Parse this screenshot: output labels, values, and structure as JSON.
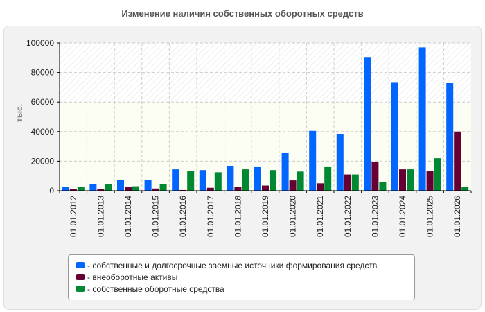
{
  "chart_data": {
    "type": "bar",
    "title": "Изменение наличия собственных оборотных средств",
    "ylabel": "тыс.",
    "xlabel": "",
    "ylim": [
      0,
      100000
    ],
    "yticks": [
      "0",
      "20000",
      "40000",
      "60000",
      "80000",
      "100000"
    ],
    "grid": true,
    "legend_position": "bottom",
    "categories": [
      "01.01.2012",
      "01.01.2013",
      "01.01.2014",
      "01.01.2015",
      "01.01.2016",
      "01.01.2017",
      "01.01.2018",
      "01.01.2019",
      "01.01.2020",
      "01.01.2021",
      "01.01.2022",
      "01.01.2023",
      "01.01.2024",
      "01.01.2025",
      "01.01.2026"
    ],
    "series": [
      {
        "name": "- собственные и долгосрочные заемные источники формирования средств",
        "color": "#0066ff",
        "values": [
          2500,
          4500,
          7500,
          7500,
          14500,
          14000,
          16500,
          16000,
          25500,
          40500,
          38500,
          90500,
          73500,
          97000,
          73000
        ]
      },
      {
        "name": "- внеоборотные активы",
        "color": "#660033",
        "values": [
          1000,
          1000,
          2500,
          1500,
          500,
          2000,
          2500,
          3500,
          7000,
          5000,
          11000,
          19500,
          14500,
          13500,
          40000
        ]
      },
      {
        "name": "- собственные оборотные средства",
        "color": "#008833",
        "values": [
          2500,
          4500,
          3000,
          4500,
          13500,
          12500,
          14500,
          14000,
          13000,
          16000,
          11000,
          6000,
          14500,
          22000,
          2500
        ]
      }
    ]
  }
}
